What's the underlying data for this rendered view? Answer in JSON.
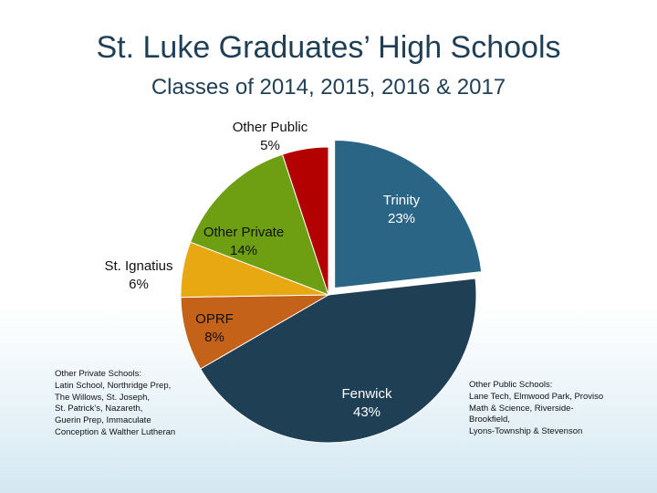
{
  "slide": {
    "title": "St. Luke Graduates’ High Schools",
    "subtitle": "Classes of 2014, 2015, 2016 & 2017"
  },
  "chart_data": {
    "type": "pie",
    "slices": [
      {
        "name": "Trinity",
        "label": "Trinity",
        "pct_label": "23%",
        "value": 23,
        "color": "#2a6585"
      },
      {
        "name": "Fenwick",
        "label": "Fenwick",
        "pct_label": "43%",
        "value": 43,
        "color": "#1e3f54"
      },
      {
        "name": "OPRF",
        "label": "OPRF",
        "pct_label": "8%",
        "value": 8,
        "color": "#c4621a"
      },
      {
        "name": "St. Ignatius",
        "label": "St. Ignatius",
        "pct_label": "6%",
        "value": 6,
        "color": "#e8a812"
      },
      {
        "name": "Other Private",
        "label": "Other Private",
        "pct_label": "14%",
        "value": 14,
        "color": "#6e9e12"
      },
      {
        "name": "Other Public",
        "label": "Other Public",
        "pct_label": "5%",
        "value": 5,
        "color": "#b30000"
      }
    ],
    "start_angle_deg": 0,
    "direction": "clockwise"
  },
  "notes": {
    "other_private": [
      "Other Private Schools:",
      "Latin School, Northridge Prep,",
      "The Willows, St. Joseph,",
      "St. Patrick’s, Nazareth,",
      "Guerin Prep, Immaculate",
      "Conception & Walther Lutheran"
    ],
    "other_public": [
      "Other Public Schools:",
      "Lane Tech, Elmwood Park, Proviso",
      "Math & Science, Riverside-",
      "Brookfield,",
      "Lyons-Township & Stevenson"
    ]
  }
}
